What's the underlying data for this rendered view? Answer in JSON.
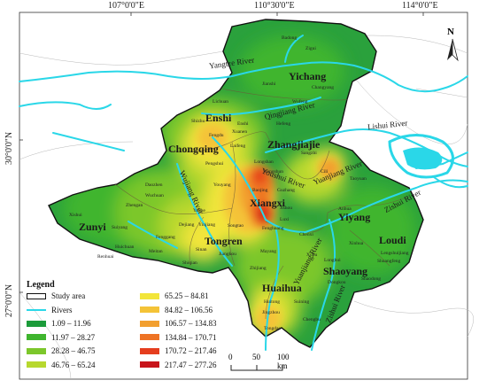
{
  "coordinates": {
    "lon_labels": [
      "107°0'0\"E",
      "110°30'0\"E",
      "114°0'0\"E"
    ],
    "lat_labels": [
      "30°0'0\"N",
      "27°0'0\"N"
    ]
  },
  "regions": [
    "Yichang",
    "Enshi",
    "Chongqing",
    "Zhangjiajie",
    "Xiangxi",
    "Zunyi",
    "Tongren",
    "Yiyang",
    "Loudi",
    "Shaoyang",
    "Huaihua"
  ],
  "rivers": [
    "Yangtze River",
    "Qingjiang River",
    "Lishui River",
    "Youshui River",
    "Yuanjiang River",
    "Wujiang River",
    "Zishui River",
    "Yuanjiang River",
    "Zishui River"
  ],
  "counties": [
    "Badong",
    "Zigui",
    "Changyang",
    "Jianshi",
    "Wufeng",
    "Lichuan",
    "Hefeng",
    "Enshi",
    "Xuanen",
    "Laifeng",
    "Shizhu",
    "Fengdu",
    "Pengshui",
    "Youyang",
    "Longshan",
    "Yongshun",
    "Sangzhi",
    "Cili",
    "Taoyuan",
    "Anhua",
    "Xinhua",
    "Lengshuijiang",
    "Shuangfeng",
    "Shaodong",
    "Longhui",
    "Dongkou",
    "Xupu",
    "Chenxi",
    "Luxi",
    "Jishou",
    "Baojing",
    "Guzhang",
    "Fenghuang",
    "Mayang",
    "Zhijiang",
    "Huitong",
    "Jingzhou",
    "Tongdao",
    "Suining",
    "Chengbu",
    "Songtao",
    "Jiangkou",
    "Shiqian",
    "Sinan",
    "Yinjiang",
    "Dejiang",
    "Yanhe",
    "Wuchuan",
    "Fenggang",
    "Meitan",
    "Huichuan",
    "Renhuai",
    "Xishui",
    "Zhengan",
    "Daozhen",
    "Suiyang"
  ],
  "legend": {
    "title": "Legend",
    "items": [
      {
        "label": "Study area",
        "color": "#ffffff",
        "kind": "box"
      },
      {
        "label": "Rivers",
        "color": "#2ad7e8",
        "kind": "line"
      },
      {
        "label": "1.09 – 11.96",
        "color": "#1b9b3a",
        "kind": "fill"
      },
      {
        "label": "11.97 – 28.27",
        "color": "#3fb52e",
        "kind": "fill"
      },
      {
        "label": "28.28 – 46.75",
        "color": "#7cc72b",
        "kind": "fill"
      },
      {
        "label": "46.76 – 65.24",
        "color": "#b7d82e",
        "kind": "fill"
      },
      {
        "label": "65.25 – 84.81",
        "color": "#f2e53a",
        "kind": "fill"
      },
      {
        "label": "84.82 – 106.56",
        "color": "#f4c337",
        "kind": "fill"
      },
      {
        "label": "106.57 – 134.83",
        "color": "#f29f2f",
        "kind": "fill"
      },
      {
        "label": "134.84 – 170.71",
        "color": "#ee7324",
        "kind": "fill"
      },
      {
        "label": "170.72 – 217.46",
        "color": "#e53e1e",
        "kind": "fill"
      },
      {
        "label": "217.47 – 277.26",
        "color": "#c8141b",
        "kind": "fill"
      }
    ]
  },
  "scalebar": {
    "ticks": [
      "0",
      "50",
      "100 km"
    ]
  },
  "north_arrow": {
    "label": "N"
  }
}
